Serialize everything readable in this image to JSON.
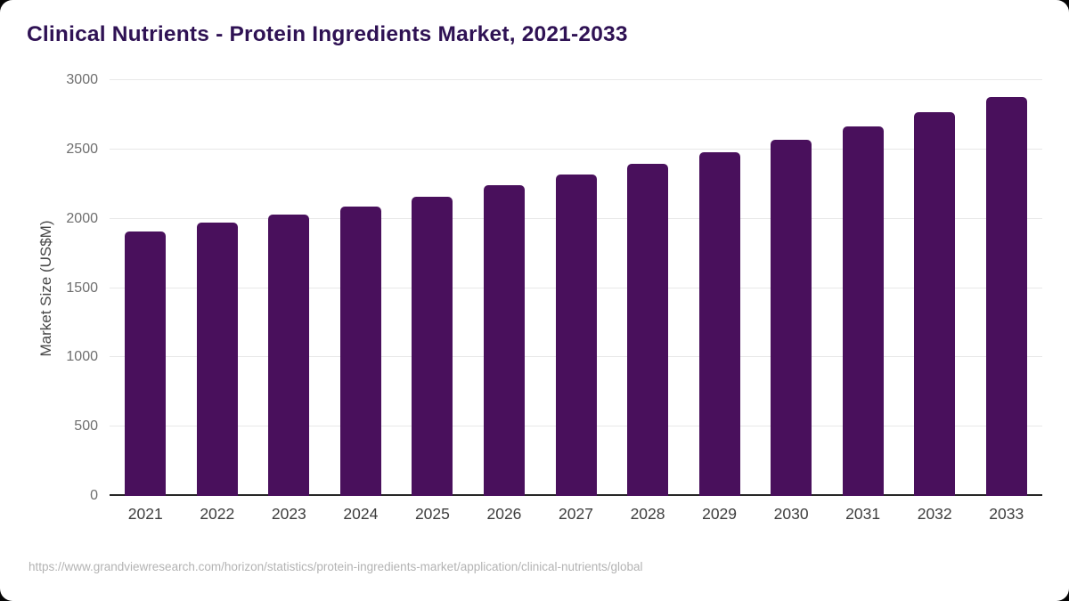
{
  "header": {
    "title": "Clinical Nutrients - Protein Ingredients Market, 2021-2033"
  },
  "chart_data": {
    "type": "bar",
    "title": "Clinical Nutrients - Protein Ingredients Market, 2021-2033",
    "categories": [
      "2021",
      "2022",
      "2023",
      "2024",
      "2025",
      "2026",
      "2027",
      "2028",
      "2029",
      "2030",
      "2031",
      "2032",
      "2033"
    ],
    "values": [
      1910,
      1970,
      2028,
      2088,
      2158,
      2240,
      2318,
      2398,
      2480,
      2572,
      2668,
      2768,
      2876
    ],
    "xlabel": "",
    "ylabel": "Market Size (US$M)",
    "ylim": [
      0,
      3000
    ],
    "yticks": [
      0,
      500,
      1000,
      1500,
      2000,
      2500,
      3000
    ],
    "grid": true,
    "legend": false,
    "bar_color": "#49105c",
    "axis_line_color": "#262626",
    "gridline_color": "#e8e8e8",
    "title_color": "#2f1254"
  },
  "footer": {
    "source_url": "https://www.grandviewresearch.com/horizon/statistics/protein-ingredients-market/application/clinical-nutrients/global"
  }
}
